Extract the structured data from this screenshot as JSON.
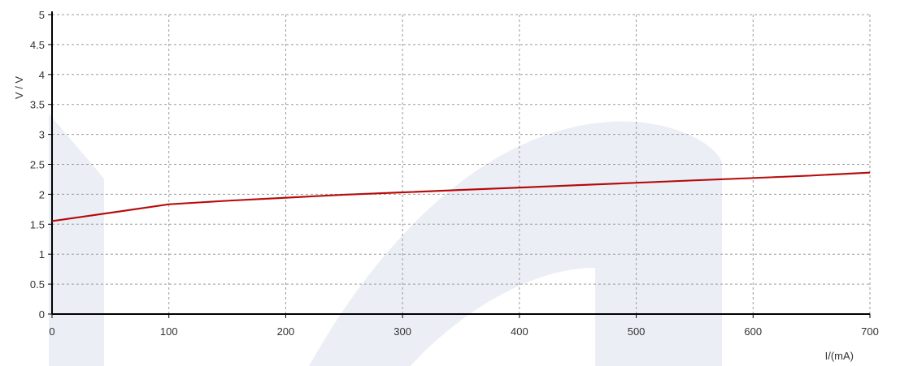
{
  "chart_data": {
    "type": "line",
    "title": "",
    "xlabel": "I/(mA)",
    "ylabel": "V / V",
    "xlim": [
      0,
      700
    ],
    "ylim": [
      0,
      5
    ],
    "x_ticks": [
      "0",
      "100",
      "200",
      "300",
      "400",
      "500",
      "600",
      "700"
    ],
    "y_ticks": [
      "0",
      "0.5",
      "1",
      "1.5",
      "2",
      "2.5",
      "3",
      "3.5",
      "4",
      "4.5",
      "5"
    ],
    "grid": true,
    "series": [
      {
        "color": "#cc0000",
        "x": [
          0,
          50,
          100,
          150,
          200,
          250,
          300,
          350,
          400,
          450,
          500,
          550,
          600,
          650,
          700
        ],
        "y": [
          1.55,
          1.69,
          1.83,
          1.89,
          1.94,
          1.99,
          2.03,
          2.07,
          2.11,
          2.15,
          2.19,
          2.23,
          2.27,
          2.31,
          2.36
        ]
      }
    ],
    "watermark_color": "#ebeff5"
  }
}
